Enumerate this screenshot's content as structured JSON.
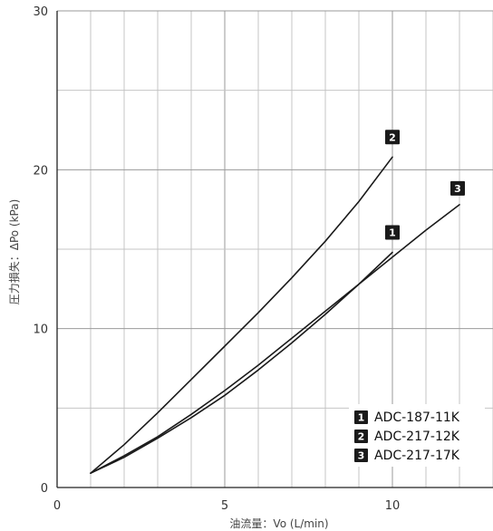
{
  "chart_data": {
    "type": "line",
    "xlabel": "油流量：Vo (L/min)",
    "ylabel": "圧力損失：ΔPo (kPa)",
    "xlim": [
      0,
      13
    ],
    "ylim": [
      0,
      30
    ],
    "x_ticks": [
      "0",
      "5",
      "10"
    ],
    "y_ticks": [
      "0",
      "10",
      "20",
      "30"
    ],
    "grid": true,
    "legend_position": "bottom-right",
    "series": [
      {
        "marker": "1",
        "name": "ADC-187-11K",
        "points": [
          [
            1,
            0.9
          ],
          [
            2,
            1.9
          ],
          [
            3,
            3.1
          ],
          [
            4,
            4.4
          ],
          [
            5,
            5.8
          ],
          [
            6,
            7.4
          ],
          [
            7,
            9.1
          ],
          [
            8,
            10.9
          ],
          [
            9,
            12.8
          ],
          [
            10,
            14.8
          ]
        ]
      },
      {
        "marker": "2",
        "name": "ADC-217-12K",
        "points": [
          [
            1,
            0.9
          ],
          [
            2,
            2.7
          ],
          [
            3,
            4.7
          ],
          [
            4,
            6.8
          ],
          [
            5,
            8.9
          ],
          [
            6,
            11.0
          ],
          [
            7,
            13.2
          ],
          [
            8,
            15.5
          ],
          [
            9,
            18.0
          ],
          [
            10,
            20.8
          ]
        ]
      },
      {
        "marker": "3",
        "name": "ADC-217-17K",
        "points": [
          [
            1,
            0.9
          ],
          [
            2,
            2.0
          ],
          [
            3,
            3.2
          ],
          [
            4,
            4.6
          ],
          [
            5,
            6.1
          ],
          [
            6,
            7.7
          ],
          [
            7,
            9.4
          ],
          [
            8,
            11.1
          ],
          [
            9,
            12.8
          ],
          [
            10,
            14.5
          ],
          [
            11,
            16.2
          ],
          [
            12,
            17.8
          ]
        ]
      }
    ]
  }
}
